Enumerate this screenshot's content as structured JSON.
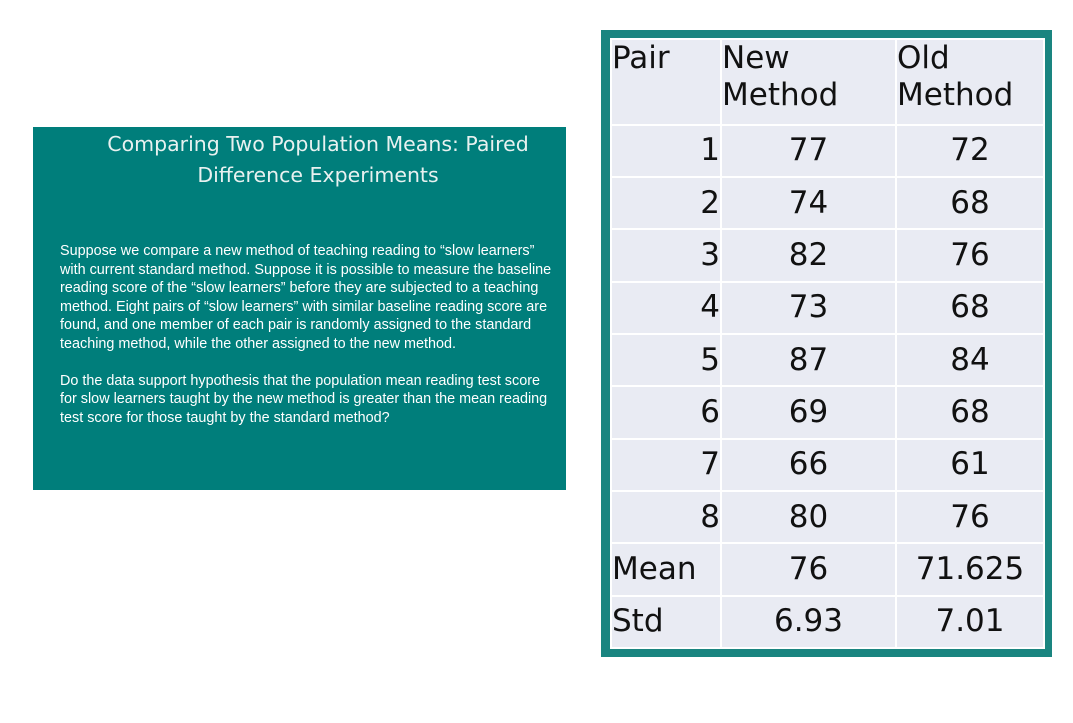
{
  "slide": {
    "title": "Comparing Two Population Means: Paired Difference Experiments",
    "paragraph_1": "Suppose we compare a new method of teaching reading to “slow learners” with current standard method. Suppose it is possible to measure the baseline reading score of the “slow learners” before they are subjected to a teaching method. Eight pairs of “slow learners” with similar baseline reading score are found, and one member of each pair is randomly assigned to the standard teaching method, while the other assigned to the new method.",
    "paragraph_2": "Do the data support hypothesis that the population mean reading test score for slow learners taught by the new method is greater than the mean reading test score for those taught by the standard method?"
  },
  "table": {
    "headers": {
      "pair": "Pair",
      "new_line1": "New",
      "new_line2": "Method",
      "old_line1": "Old",
      "old_line2": "Method"
    },
    "rows": [
      {
        "pair": "1",
        "new": "77",
        "old": "72"
      },
      {
        "pair": "2",
        "new": "74",
        "old": "68"
      },
      {
        "pair": "3",
        "new": "82",
        "old": "76"
      },
      {
        "pair": "4",
        "new": "73",
        "old": "68"
      },
      {
        "pair": "5",
        "new": "87",
        "old": "84"
      },
      {
        "pair": "6",
        "new": "69",
        "old": "68"
      },
      {
        "pair": "7",
        "new": "66",
        "old": "61"
      },
      {
        "pair": "8",
        "new": "80",
        "old": "76"
      }
    ],
    "mean": {
      "label": "Mean",
      "new": "76",
      "old": "71.625"
    },
    "std": {
      "label": "Std",
      "new": "6.93",
      "old": "7.01"
    }
  },
  "colors": {
    "slide_background": "#007e7b",
    "table_frame": "#1a8580",
    "table_cell": "#e9ebf3"
  }
}
